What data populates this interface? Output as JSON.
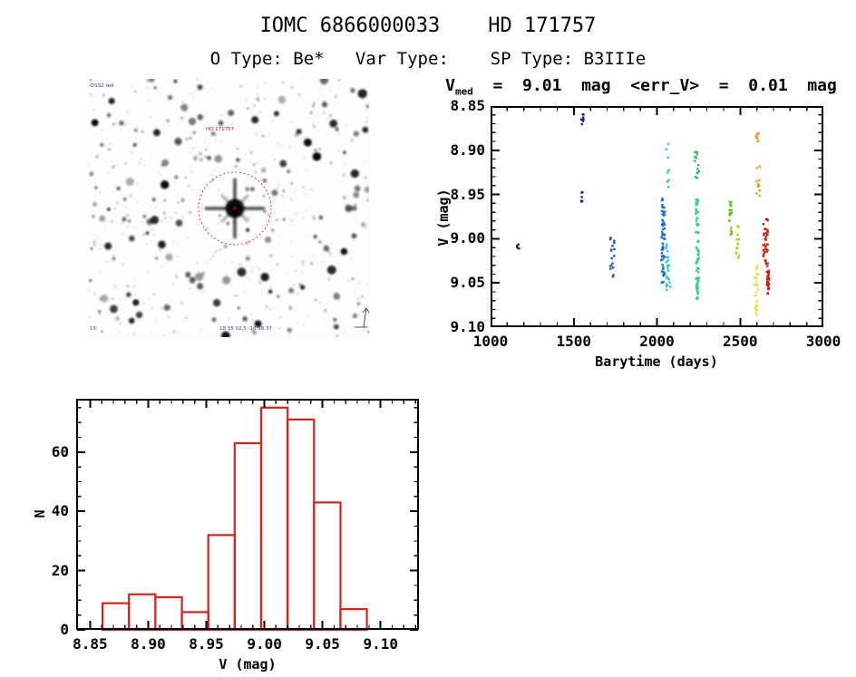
{
  "header": {
    "title": "IOMC 6866000033    HD 171757",
    "subtitle": "O Type: Be*   Var Type:    SP Type: B3IIIe"
  },
  "finder": {
    "target_label": "HD 171757",
    "survey_text": "DSS2 red",
    "coords_text": "18 35 02.5  -10 58 37",
    "scale_text": "15'",
    "circle_color": "#cc1111"
  },
  "chart_data": [
    {
      "type": "scatter",
      "title": {
        "var": "V",
        "sub": "med",
        "rest": "  =  9.01  mag  <err_V>  =  0.01  mag"
      },
      "xlabel": "Barytime (days)",
      "ylabel": "V (mag)",
      "xlim": [
        1000,
        3000
      ],
      "ylim": [
        8.85,
        9.1
      ],
      "y_inverted": true,
      "xticks": [
        1000,
        1500,
        2000,
        2500,
        3000
      ],
      "xtick_labels": [
        "1000",
        "1500",
        "2000",
        "2500",
        "3000"
      ],
      "yticks": [
        8.85,
        8.9,
        8.95,
        9.0,
        9.05,
        9.1
      ],
      "ytick_labels": [
        "8.85",
        "8.90",
        "8.95",
        "9.00",
        "9.05",
        "9.10"
      ],
      "x_minor_step": 100,
      "y_minor_step": 0.01,
      "clusters": [
        {
          "x": 1165,
          "xs": 18,
          "v1": 8.997,
          "v2": 9.018,
          "n": 4,
          "color": "#3b1048"
        },
        {
          "x": 1553,
          "xs": 16,
          "v1": 8.859,
          "v2": 8.872,
          "n": 8,
          "color": "#33177f"
        },
        {
          "x": 1551,
          "xs": 14,
          "v1": 8.947,
          "v2": 8.96,
          "n": 6,
          "color": "#481068"
        },
        {
          "x": 1732,
          "xs": 26,
          "v1": 8.998,
          "v2": 9.048,
          "n": 17,
          "color": "#2b4fc0"
        },
        {
          "x": 2037,
          "xs": 22,
          "v1": 8.952,
          "v2": 9.05,
          "n": 60,
          "color": "#1c6fd2"
        },
        {
          "x": 2064,
          "xs": 20,
          "v1": 8.89,
          "v2": 8.942,
          "n": 11,
          "color": "#3fc3d6"
        },
        {
          "x": 2068,
          "xs": 26,
          "v1": 9.006,
          "v2": 9.061,
          "n": 26,
          "color": "#3cc6c2"
        },
        {
          "x": 2240,
          "xs": 26,
          "v1": 8.899,
          "v2": 8.932,
          "n": 13,
          "color": "#2fb757"
        },
        {
          "x": 2243,
          "xs": 20,
          "v1": 8.952,
          "v2": 9.072,
          "n": 65,
          "color": "#36cf7d"
        },
        {
          "x": 2441,
          "xs": 16,
          "v1": 8.957,
          "v2": 8.98,
          "n": 13,
          "color": "#56c41e"
        },
        {
          "x": 2446,
          "xs": 10,
          "v1": 8.987,
          "v2": 9.003,
          "n": 5,
          "color": "#63c41e"
        },
        {
          "x": 2486,
          "xs": 18,
          "v1": 8.984,
          "v2": 9.03,
          "n": 13,
          "color": "#a4d021"
        },
        {
          "x": 2604,
          "xs": 18,
          "v1": 8.873,
          "v2": 8.891,
          "n": 8,
          "color": "#dda035"
        },
        {
          "x": 2608,
          "xs": 18,
          "v1": 8.917,
          "v2": 8.952,
          "n": 11,
          "color": "#dda035"
        },
        {
          "x": 2596,
          "xs": 26,
          "v1": 9.03,
          "v2": 9.088,
          "n": 26,
          "color": "#e4e040"
        },
        {
          "x": 2652,
          "xs": 28,
          "v1": 8.978,
          "v2": 9.034,
          "n": 36,
          "color": "#cd2317"
        },
        {
          "x": 2668,
          "xs": 14,
          "v1": 9.034,
          "v2": 9.06,
          "n": 26,
          "color": "#c91f11"
        },
        {
          "x": 2666,
          "xs": 4,
          "v1": 9.061,
          "v2": 9.063,
          "n": 2,
          "color": "#c91f11"
        }
      ]
    },
    {
      "type": "bar",
      "xlabel": "V (mag)",
      "ylabel": "N",
      "xlim": [
        8.838,
        9.133
      ],
      "ylim": [
        0,
        78
      ],
      "xticks": [
        8.85,
        8.9,
        8.95,
        9.0,
        9.05,
        9.1
      ],
      "xtick_labels": [
        "8.85",
        "8.90",
        "8.95",
        "9.00",
        "9.05",
        "9.10"
      ],
      "yticks": [
        0,
        20,
        40,
        60
      ],
      "ytick_labels": [
        "0",
        "20",
        "40",
        "60"
      ],
      "x_minor_step": 0.01,
      "y_minor_step": 5,
      "bin_start": 8.8607,
      "bin_width": 0.02275,
      "values": [
        9,
        12,
        11,
        6,
        32,
        63,
        75,
        71,
        43,
        7
      ],
      "bar_color": "#d42420"
    }
  ]
}
